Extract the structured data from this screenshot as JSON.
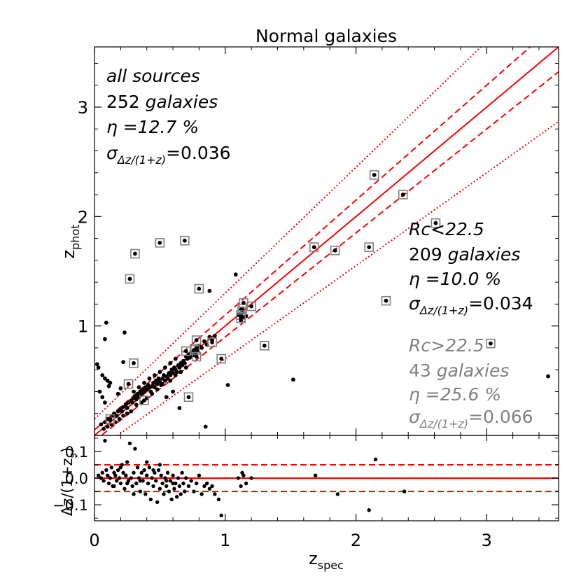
{
  "chart_data": [
    {
      "type": "scatter",
      "panel": "main",
      "title": "Normal galaxies",
      "xlabel": "z",
      "xlabel_sub": "spec",
      "ylabel": "z",
      "ylabel_sub": "phot",
      "xlim": [
        0,
        3.55
      ],
      "ylim": [
        0,
        3.55
      ],
      "xticks": [
        0,
        1,
        2,
        3
      ],
      "yticks": [
        0,
        1,
        2,
        3
      ],
      "xtick_labels": [
        "0",
        "1",
        "2",
        "3"
      ],
      "ytick_labels": [
        "0",
        "1",
        "2",
        "3"
      ],
      "grid": false,
      "lines": [
        {
          "name": "one-to-one",
          "style": "solid",
          "a": 1.0,
          "b": 0.0
        },
        {
          "name": "+0.05(1+z)",
          "style": "dashed",
          "a": 1.05,
          "b": 0.05
        },
        {
          "name": "-0.05(1+z)",
          "style": "dashed",
          "a": 0.95,
          "b": -0.05
        },
        {
          "name": "+0.15(1+z)",
          "style": "dotted",
          "a": 1.15,
          "b": 0.15
        },
        {
          "name": "-0.15(1+z)",
          "style": "dotted",
          "a": 0.85,
          "b": -0.15
        }
      ],
      "series": [
        {
          "name": "Rc<22.5",
          "marker": "dot",
          "points": [
            [
              0.05,
              0.1
            ],
            [
              0.08,
              0.12
            ],
            [
              0.1,
              0.15
            ],
            [
              0.12,
              0.14
            ],
            [
              0.14,
              0.18
            ],
            [
              0.15,
              0.2
            ],
            [
              0.17,
              0.18
            ],
            [
              0.18,
              0.22
            ],
            [
              0.2,
              0.24
            ],
            [
              0.21,
              0.22
            ],
            [
              0.22,
              0.26
            ],
            [
              0.24,
              0.28
            ],
            [
              0.25,
              0.25
            ],
            [
              0.26,
              0.3
            ],
            [
              0.28,
              0.32
            ],
            [
              0.29,
              0.3
            ],
            [
              0.3,
              0.34
            ],
            [
              0.31,
              0.36
            ],
            [
              0.32,
              0.33
            ],
            [
              0.33,
              0.38
            ],
            [
              0.34,
              0.35
            ],
            [
              0.35,
              0.4
            ],
            [
              0.36,
              0.38
            ],
            [
              0.37,
              0.42
            ],
            [
              0.38,
              0.4
            ],
            [
              0.39,
              0.44
            ],
            [
              0.4,
              0.42
            ],
            [
              0.41,
              0.46
            ],
            [
              0.42,
              0.44
            ],
            [
              0.43,
              0.4
            ],
            [
              0.44,
              0.45
            ],
            [
              0.45,
              0.48
            ],
            [
              0.46,
              0.44
            ],
            [
              0.47,
              0.5
            ],
            [
              0.48,
              0.47
            ],
            [
              0.49,
              0.52
            ],
            [
              0.5,
              0.49
            ],
            [
              0.51,
              0.46
            ],
            [
              0.52,
              0.52
            ],
            [
              0.53,
              0.55
            ],
            [
              0.54,
              0.5
            ],
            [
              0.55,
              0.54
            ],
            [
              0.56,
              0.52
            ],
            [
              0.57,
              0.57
            ],
            [
              0.58,
              0.55
            ],
            [
              0.59,
              0.6
            ],
            [
              0.6,
              0.57
            ],
            [
              0.61,
              0.62
            ],
            [
              0.62,
              0.6
            ],
            [
              0.63,
              0.58
            ],
            [
              0.64,
              0.64
            ],
            [
              0.65,
              0.62
            ],
            [
              0.66,
              0.66
            ],
            [
              0.67,
              0.64
            ],
            [
              0.68,
              0.68
            ],
            [
              0.69,
              0.66
            ],
            [
              0.7,
              0.72
            ],
            [
              0.71,
              0.7
            ],
            [
              0.72,
              0.74
            ],
            [
              0.73,
              0.71
            ],
            [
              0.74,
              0.76
            ],
            [
              0.75,
              0.73
            ],
            [
              0.76,
              0.78
            ],
            [
              0.77,
              0.75
            ],
            [
              0.78,
              0.8
            ],
            [
              0.79,
              0.77
            ],
            [
              0.8,
              0.82
            ],
            [
              0.82,
              0.8
            ],
            [
              0.84,
              0.86
            ],
            [
              0.86,
              0.83
            ],
            [
              0.88,
              0.9
            ],
            [
              0.9,
              0.87
            ],
            [
              0.92,
              0.91
            ],
            [
              0.44,
              0.38
            ],
            [
              0.48,
              0.42
            ],
            [
              0.52,
              0.47
            ],
            [
              0.58,
              0.5
            ],
            [
              0.62,
              0.55
            ],
            [
              0.66,
              0.58
            ],
            [
              0.7,
              0.62
            ],
            [
              0.36,
              0.3
            ],
            [
              0.4,
              0.34
            ],
            [
              0.3,
              0.4
            ],
            [
              0.34,
              0.44
            ],
            [
              0.38,
              0.48
            ],
            [
              0.42,
              0.52
            ],
            [
              0.46,
              0.55
            ],
            [
              0.5,
              0.58
            ],
            [
              0.54,
              0.62
            ],
            [
              0.58,
              0.66
            ],
            [
              0.62,
              0.7
            ],
            [
              0.25,
              0.2
            ],
            [
              0.22,
              0.18
            ],
            [
              0.19,
              0.15
            ],
            [
              0.16,
              0.12
            ],
            [
              0.13,
              0.1
            ],
            [
              0.1,
              0.08
            ],
            [
              0.07,
              0.06
            ],
            [
              0.28,
              0.22
            ],
            [
              1.1,
              1.1
            ],
            [
              1.12,
              1.15
            ],
            [
              1.14,
              1.08
            ],
            [
              1.12,
              1.05
            ],
            [
              1.13,
              1.12
            ],
            [
              1.16,
              1.09
            ],
            [
              0.02,
              0.65
            ],
            [
              0.03,
              0.62
            ],
            [
              0.06,
              0.55
            ],
            [
              0.08,
              0.52
            ],
            [
              0.1,
              0.5
            ],
            [
              0.12,
              0.48
            ],
            [
              0.04,
              0.4
            ],
            [
              0.06,
              0.35
            ],
            [
              0.08,
              0.3
            ],
            [
              0.11,
              0.45
            ],
            [
              0.09,
              1.03
            ],
            [
              0.08,
              0.88
            ],
            [
              0.23,
              0.94
            ],
            [
              0.22,
              0.67
            ],
            [
              0.2,
              0.43
            ],
            [
              0.18,
              0.38
            ],
            [
              0.65,
              0.25
            ],
            [
              0.85,
              0.08
            ],
            [
              1.02,
              0.46
            ],
            [
              1.52,
              0.51
            ],
            [
              3.47,
              0.54
            ],
            [
              1.08,
              1.47
            ],
            [
              0.88,
              1.32
            ],
            [
              0.28,
              0.31
            ],
            [
              0.32,
              0.28
            ],
            [
              0.55,
              0.35
            ],
            [
              0.6,
              0.4
            ]
          ]
        },
        {
          "name": "Rc>22.5",
          "marker": "boxed-dot",
          "points": [
            [
              0.27,
              1.43
            ],
            [
              0.31,
              1.66
            ],
            [
              0.5,
              1.76
            ],
            [
              0.69,
              1.78
            ],
            [
              0.3,
              0.66
            ],
            [
              0.26,
              0.47
            ],
            [
              0.12,
              0.15
            ],
            [
              0.38,
              0.32
            ],
            [
              0.72,
              0.35
            ],
            [
              0.7,
              0.77
            ],
            [
              0.78,
              0.87
            ],
            [
              0.77,
              0.78
            ],
            [
              0.78,
              0.72
            ],
            [
              0.9,
              0.85
            ],
            [
              0.97,
              0.7
            ],
            [
              0.8,
              1.34
            ],
            [
              1.12,
              1.1
            ],
            [
              1.13,
              1.16
            ],
            [
              1.14,
              1.21
            ],
            [
              1.12,
              1.07
            ],
            [
              1.2,
              1.18
            ],
            [
              1.3,
              0.82
            ],
            [
              1.68,
              1.72
            ],
            [
              1.84,
              1.69
            ],
            [
              2.1,
              1.72
            ],
            [
              2.14,
              2.38
            ],
            [
              2.23,
              1.23
            ],
            [
              2.36,
              2.2
            ],
            [
              2.61,
              1.94
            ],
            [
              3.03,
              0.84
            ]
          ]
        }
      ],
      "annotations": {
        "all": {
          "title": "all sources",
          "count": "252",
          "count_label": "galaxies",
          "eta": "η =12.7 %",
          "sigma_symbol": "σ",
          "sigma_sub": "Δz/(1+z)",
          "sigma_value": "=0.036"
        },
        "bright": {
          "title": "Rc<22.5",
          "count": "209",
          "count_label": "galaxies",
          "eta": "η =10.0 %",
          "sigma_symbol": "σ",
          "sigma_sub": "Δz/(1+z)",
          "sigma_value": "=0.034"
        },
        "faint": {
          "title": "Rc>22.5",
          "count": "43",
          "count_label": "galaxies",
          "eta": "η =25.6 %",
          "sigma_symbol": "σ",
          "sigma_sub": "Δz/(1+z)",
          "sigma_value": "=0.066"
        }
      },
      "colors": {
        "lines": "#ff0000",
        "points": "#000000",
        "boxes": "#808080",
        "faint_text": "#808080",
        "text": "#000000"
      }
    },
    {
      "type": "scatter",
      "panel": "residual",
      "xlabel": "",
      "ylabel": "Δz/(1+z",
      "ylabel_sub": "s",
      "ylabel_suffix": ")",
      "xlim": [
        0,
        3.55
      ],
      "ylim": [
        -0.16,
        0.16
      ],
      "yticks": [
        -0.1,
        0.0,
        0.1
      ],
      "ytick_labels": [
        "−0.1",
        "0.0",
        "0.1"
      ],
      "hlines": [
        {
          "name": "zero",
          "style": "solid",
          "y": 0.0
        },
        {
          "name": "+0.05",
          "style": "dashed",
          "y": 0.05
        },
        {
          "name": "-0.05",
          "style": "dashed",
          "y": -0.05
        }
      ],
      "points": [
        [
          0.03,
          0.01
        ],
        [
          0.05,
          0.0
        ],
        [
          0.06,
          0.02
        ],
        [
          0.07,
          -0.01
        ],
        [
          0.08,
          0.14
        ],
        [
          0.09,
          0.03
        ],
        [
          0.1,
          0.01
        ],
        [
          0.11,
          -0.02
        ],
        [
          0.12,
          0.0
        ],
        [
          0.13,
          0.04
        ],
        [
          0.14,
          -0.03
        ],
        [
          0.15,
          0.02
        ],
        [
          0.16,
          0.01
        ],
        [
          0.17,
          -0.01
        ],
        [
          0.18,
          0.03
        ],
        [
          0.19,
          0.0
        ],
        [
          0.2,
          -0.02
        ],
        [
          0.21,
          0.05
        ],
        [
          0.22,
          0.02
        ],
        [
          0.23,
          -0.04
        ],
        [
          0.24,
          0.01
        ],
        [
          0.25,
          0.06
        ],
        [
          0.26,
          -0.01
        ],
        [
          0.27,
          0.13
        ],
        [
          0.28,
          0.0
        ],
        [
          0.29,
          -0.03
        ],
        [
          0.3,
          0.02
        ],
        [
          0.31,
          0.11
        ],
        [
          0.32,
          -0.02
        ],
        [
          0.33,
          0.04
        ],
        [
          0.34,
          0.0
        ],
        [
          0.35,
          -0.05
        ],
        [
          0.36,
          0.02
        ],
        [
          0.37,
          -0.01
        ],
        [
          0.38,
          0.03
        ],
        [
          0.39,
          -0.06
        ],
        [
          0.4,
          0.01
        ],
        [
          0.41,
          -0.02
        ],
        [
          0.42,
          0.04
        ],
        [
          0.43,
          -0.08
        ],
        [
          0.44,
          0.0
        ],
        [
          0.45,
          -0.03
        ],
        [
          0.46,
          0.02
        ],
        [
          0.47,
          -0.01
        ],
        [
          0.48,
          -0.09
        ],
        [
          0.49,
          0.03
        ],
        [
          0.5,
          -0.04
        ],
        [
          0.51,
          0.01
        ],
        [
          0.52,
          -0.02
        ],
        [
          0.53,
          -0.06
        ],
        [
          0.54,
          0.0
        ],
        [
          0.55,
          -0.03
        ],
        [
          0.56,
          0.02
        ],
        [
          0.57,
          -0.05
        ],
        [
          0.58,
          -0.01
        ],
        [
          0.59,
          -0.08
        ],
        [
          0.6,
          0.01
        ],
        [
          0.61,
          -0.04
        ],
        [
          0.62,
          -0.02
        ],
        [
          0.63,
          -0.07
        ],
        [
          0.64,
          0.0
        ],
        [
          0.65,
          -0.03
        ],
        [
          0.66,
          -0.06
        ],
        [
          0.67,
          0.02
        ],
        [
          0.68,
          -0.02
        ],
        [
          0.69,
          -0.05
        ],
        [
          0.7,
          0.0
        ],
        [
          0.72,
          -0.03
        ],
        [
          0.74,
          -0.01
        ],
        [
          0.76,
          -0.05
        ],
        [
          0.78,
          -0.02
        ],
        [
          0.8,
          0.01
        ],
        [
          0.82,
          -0.06
        ],
        [
          0.84,
          -0.03
        ],
        [
          0.86,
          -0.02
        ],
        [
          0.88,
          -0.04
        ],
        [
          0.9,
          -0.03
        ],
        [
          0.92,
          -0.06
        ],
        [
          0.95,
          -0.08
        ],
        [
          0.97,
          -0.14
        ],
        [
          0.35,
          -0.01
        ],
        [
          0.4,
          0.06
        ],
        [
          0.45,
          0.03
        ],
        [
          0.5,
          0.05
        ],
        [
          0.55,
          -0.01
        ],
        [
          0.6,
          -0.02
        ],
        [
          0.3,
          -0.06
        ],
        [
          0.25,
          -0.02
        ],
        [
          0.2,
          0.04
        ],
        [
          0.15,
          -0.03
        ],
        [
          1.1,
          0.0
        ],
        [
          1.12,
          -0.03
        ],
        [
          1.14,
          0.01
        ],
        [
          1.16,
          -0.02
        ],
        [
          1.13,
          0.02
        ],
        [
          1.2,
          0.0
        ],
        [
          1.69,
          0.01
        ],
        [
          1.86,
          -0.06
        ],
        [
          2.1,
          -0.12
        ],
        [
          2.15,
          0.07
        ],
        [
          2.37,
          -0.05
        ]
      ],
      "colors": {
        "lines": "#ff0000",
        "points": "#000000"
      }
    }
  ]
}
